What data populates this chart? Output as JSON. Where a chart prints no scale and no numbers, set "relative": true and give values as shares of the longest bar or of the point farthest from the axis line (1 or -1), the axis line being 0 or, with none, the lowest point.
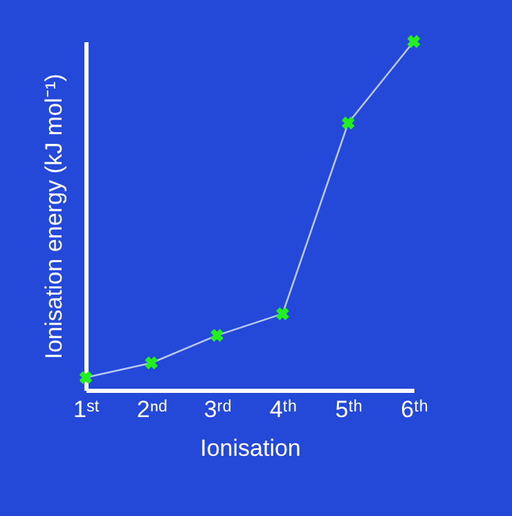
{
  "chart_data": {
    "type": "line",
    "relative": true,
    "xlabel": "Ionisation",
    "ylabel": "Ionisation energy (kJ mol⁻¹)",
    "categories": [
      "1ˢᵗ",
      "2ⁿᵈ",
      "3ʳᵈ",
      "4ᵗʰ",
      "5ᵗʰ",
      "6ᵗʰ"
    ],
    "series": [
      {
        "color": "#22ee22",
        "values": [
          0.036,
          0.078,
          0.157,
          0.219,
          0.766,
          1.0
        ]
      }
    ],
    "marker": "cross",
    "line_style": "solid",
    "grid": false
  }
}
